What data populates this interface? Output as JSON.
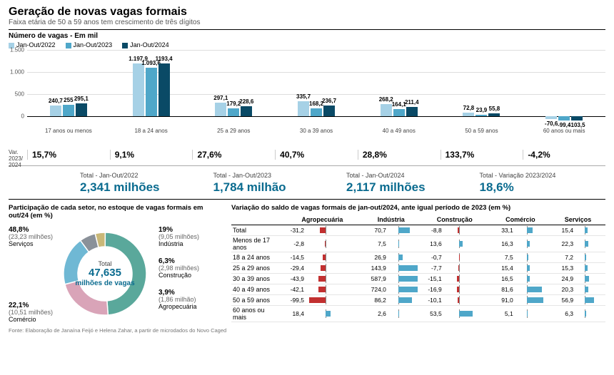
{
  "header": {
    "title": "Geração de novas vagas formais",
    "subtitle": "Faixa etária de 50 a 59 anos tem crescimento de três dígitos"
  },
  "source": "Fonte: Elaboração de Janaína Feijó e Helena Zahar, a partir de microdados do Novo Caged",
  "barChart": {
    "title": "Número de vagas - Em mil",
    "series": [
      {
        "label": "Jan-Out/2022",
        "color": "#a6d1e6"
      },
      {
        "label": "Jan-Out/2023",
        "color": "#4fa7c9"
      },
      {
        "label": "Jan-Out/2024",
        "color": "#0a4a66"
      }
    ],
    "ymax": 1500,
    "ymin": -150,
    "yticks": [
      0,
      500,
      1000,
      1500
    ],
    "categories": [
      {
        "label": "17 anos ou menos",
        "values": [
          240.7,
          255,
          295.1
        ],
        "labels": [
          "240,7",
          "255",
          "295,1"
        ],
        "var": "15,7%"
      },
      {
        "label": "18 a 24 anos",
        "values": [
          1197.9,
          1093.6,
          1193.4
        ],
        "labels": [
          "1.197,9",
          "1.093,6",
          "1193,4"
        ],
        "var": "9,1%"
      },
      {
        "label": "25 a 29 anos",
        "values": [
          297.1,
          179.2,
          228.6
        ],
        "labels": [
          "297,1",
          "179,2",
          "228,6"
        ],
        "var": "27,6%"
      },
      {
        "label": "30 a 39 anos",
        "values": [
          335.7,
          168.2,
          236.7
        ],
        "labels": [
          "335,7",
          "168,2",
          "236,7"
        ],
        "var": "40,7%"
      },
      {
        "label": "40 a 49 anos",
        "values": [
          268.2,
          164.1,
          211.4
        ],
        "labels": [
          "268,2",
          "164,1",
          "211,4"
        ],
        "var": "28,8%"
      },
      {
        "label": "50 a 59 anos",
        "values": [
          72.8,
          23.9,
          55.8
        ],
        "labels": [
          "72,8",
          "23,9",
          "55,8"
        ],
        "var": "133,7%"
      },
      {
        "label": "60 anos ou mais",
        "values": [
          -70.6,
          -99.4,
          -103.5
        ],
        "labels": [
          "-70,6",
          "-99,4",
          "-103,5"
        ],
        "var": "-4,2%"
      }
    ],
    "varLabel": "Var. 2023/ 2024"
  },
  "totals": [
    {
      "label": "Total - Jan-Out/2022",
      "value": "2,341 milhões"
    },
    {
      "label": "Total - Jan-Out/2023",
      "value": "1,784 milhão"
    },
    {
      "label": "Total - Jan-Out/2024",
      "value": "2,117 milhões"
    },
    {
      "label": "Total - Variação 2023/2024",
      "value": "18,6%"
    }
  ],
  "donut": {
    "title": "Participação de cada setor, no estoque de vagas formais em out/24 (em %)",
    "centerLabel": "Total",
    "centerValue": "47,635",
    "centerUnit": "milhões de vagas",
    "slices": [
      {
        "name": "Serviços",
        "pct": 48.8,
        "pctLabel": "48,8%",
        "abs": "(23,23 milhões)",
        "color": "#5aa89b"
      },
      {
        "name": "Comércio",
        "pct": 22.1,
        "pctLabel": "22,1%",
        "abs": "(10,51 milhões)",
        "color": "#d9a4b8"
      },
      {
        "name": "Indústria",
        "pct": 19.0,
        "pctLabel": "19%",
        "abs": "(9,05 milhões)",
        "color": "#6fb8d4"
      },
      {
        "name": "Construção",
        "pct": 6.3,
        "pctLabel": "6,3%",
        "abs": "(2,98 milhões)",
        "color": "#8a9199"
      },
      {
        "name": "Agropecuária",
        "pct": 3.9,
        "pctLabel": "3,9%",
        "abs": "(1,86 milhão)",
        "color": "#c9b878"
      }
    ]
  },
  "table": {
    "title": "Variação do saldo de vagas formais de jan-out/2024, ante igual período de 2023 (em %)",
    "columns": [
      "Agropecuária",
      "Indústria",
      "Construção",
      "Comércio",
      "Serviços"
    ],
    "negColor": "#c23030",
    "posColor": "#4fa7c9",
    "scale": 120,
    "zeroPos": 0.35,
    "rows": [
      {
        "label": "Total",
        "vals": [
          -31.2,
          70.7,
          -8.8,
          33.1,
          15.4
        ],
        "lbls": [
          "-31,2",
          "70,7",
          "-8,8",
          "33,1",
          "15,4"
        ]
      },
      {
        "label": "Menos de 17 anos",
        "vals": [
          -2.8,
          7.5,
          13.6,
          16.3,
          22.3
        ],
        "lbls": [
          "-2,8",
          "7,5",
          "13,6",
          "16,3",
          "22,3"
        ]
      },
      {
        "label": "18 a 24 anos",
        "vals": [
          -14.5,
          26.9,
          -0.7,
          7.5,
          7.2
        ],
        "lbls": [
          "-14,5",
          "26,9",
          "-0,7",
          "7,5",
          "7,2"
        ]
      },
      {
        "label": "25 a 29 anos",
        "vals": [
          -29.4,
          143.9,
          -7.7,
          15.4,
          15.3
        ],
        "lbls": [
          "-29,4",
          "143,9",
          "-7,7",
          "15,4",
          "15,3"
        ]
      },
      {
        "label": "30 a 39 anos",
        "vals": [
          -43.9,
          587.9,
          -15.1,
          16.5,
          24.9
        ],
        "lbls": [
          "-43,9",
          "587,9",
          "-15,1",
          "16,5",
          "24,9"
        ]
      },
      {
        "label": "40 a 49 anos",
        "vals": [
          -42.1,
          724.0,
          -16.9,
          81.6,
          20.3
        ],
        "lbls": [
          "-42,1",
          "724,0",
          "-16,9",
          "81,6",
          "20,3"
        ]
      },
      {
        "label": "50 a 59 anos",
        "vals": [
          -99.5,
          86.2,
          -10.1,
          91.0,
          56.9
        ],
        "lbls": [
          "-99,5",
          "86,2",
          "-10,1",
          "91,0",
          "56,9"
        ]
      },
      {
        "label": "60 anos ou mais",
        "vals": [
          18.4,
          2.6,
          53.5,
          5.1,
          6.3
        ],
        "lbls": [
          "18,4",
          "2,6",
          "53,5",
          "5,1",
          "6,3"
        ]
      }
    ]
  }
}
